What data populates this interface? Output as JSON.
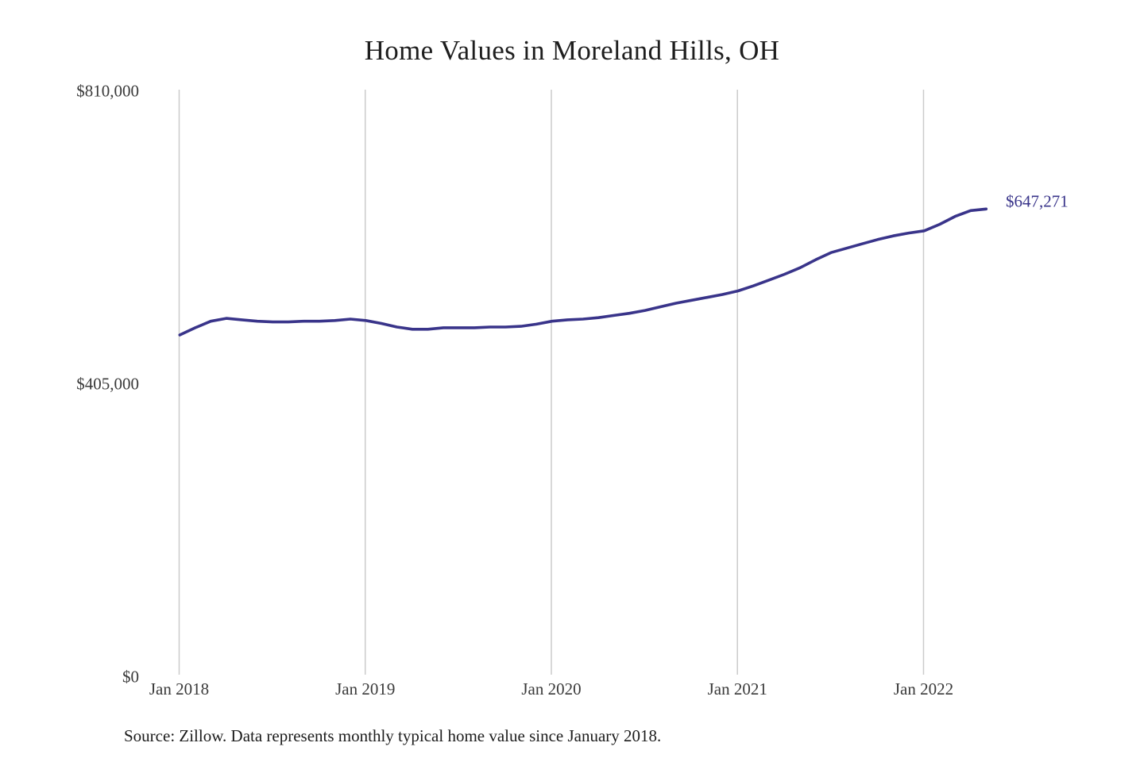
{
  "chart_data": {
    "type": "line",
    "title": "Home Values in Moreland Hills, OH",
    "x": [
      "Jan 2018",
      "Feb 2018",
      "Mar 2018",
      "Apr 2018",
      "May 2018",
      "Jun 2018",
      "Jul 2018",
      "Aug 2018",
      "Sep 2018",
      "Oct 2018",
      "Nov 2018",
      "Dec 2018",
      "Jan 2019",
      "Feb 2019",
      "Mar 2019",
      "Apr 2019",
      "May 2019",
      "Jun 2019",
      "Jul 2019",
      "Aug 2019",
      "Sep 2019",
      "Oct 2019",
      "Nov 2019",
      "Dec 2019",
      "Jan 2020",
      "Feb 2020",
      "Mar 2020",
      "Apr 2020",
      "May 2020",
      "Jun 2020",
      "Jul 2020",
      "Aug 2020",
      "Sep 2020",
      "Oct 2020",
      "Nov 2020",
      "Dec 2020",
      "Jan 2021",
      "Feb 2021",
      "Mar 2021",
      "Apr 2021",
      "May 2021",
      "Jun 2021",
      "Jul 2021",
      "Aug 2021",
      "Sep 2021",
      "Oct 2021",
      "Nov 2021",
      "Dec 2021",
      "Jan 2022",
      "Feb 2022",
      "Mar 2022",
      "Apr 2022",
      "May 2022"
    ],
    "series": [
      {
        "name": "Monthly typical home value",
        "values": [
          473000,
          483000,
          492000,
          496000,
          494000,
          492000,
          491000,
          491000,
          492000,
          492000,
          493000,
          495000,
          493000,
          489000,
          484000,
          481000,
          481000,
          483000,
          483000,
          483000,
          484000,
          484000,
          485000,
          488000,
          492000,
          494000,
          495000,
          497000,
          500000,
          503000,
          507000,
          512000,
          517000,
          521000,
          525000,
          529000,
          534000,
          541000,
          549000,
          557000,
          566000,
          577000,
          587000,
          593000,
          599000,
          605000,
          610000,
          614000,
          617000,
          626000,
          637000,
          645000,
          647271
        ]
      }
    ],
    "ylim": [
      0,
      810000
    ],
    "y_tick_values": [
      810000,
      405000,
      0
    ],
    "y_tick_labels": [
      "$810,000",
      "$405,000",
      "$0"
    ],
    "x_tick_labels": [
      "Jan 2018",
      "Jan 2019",
      "Jan 2020",
      "Jan 2021",
      "Jan 2022"
    ],
    "end_label": "$647,271",
    "line_color": "#39348a",
    "grid_color": "#cbcbcb",
    "gridlines": "vertical-only",
    "legend": "none",
    "source_note": "Source: Zillow. Data represents monthly typical home value since January 2018."
  }
}
